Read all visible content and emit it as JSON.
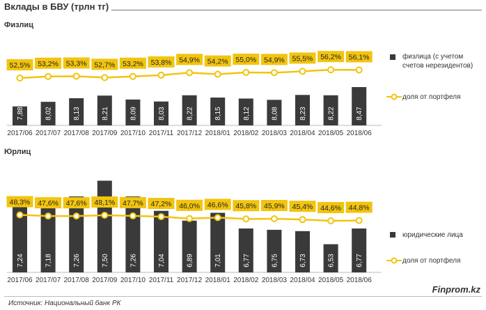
{
  "title": "Вклады в БВУ (трлн тг)",
  "source": "Источник: Национальный банк РК",
  "brand": "Finprom.kz",
  "colors": {
    "bar": "#3a3a3a",
    "line": "#f2c40f",
    "label_bg": "#f2c40f",
    "bar_text": "#ffffff"
  },
  "chart_data": [
    {
      "type": "bar",
      "panel_title": "Физлиц",
      "categories": [
        "2017/06",
        "2017/07",
        "2017/08",
        "2017/09",
        "2017/10",
        "2017/11",
        "2017/12",
        "2018/01",
        "2018/02",
        "2018/03",
        "2018/04",
        "2018/05",
        "2018/06"
      ],
      "series": [
        {
          "name": "физлица (с учетом счетов нерезидентов)",
          "type": "bar",
          "values": [
            7.88,
            8.02,
            8.13,
            8.21,
            8.09,
            8.03,
            8.22,
            8.15,
            8.12,
            8.08,
            8.23,
            8.22,
            8.47
          ],
          "labels": [
            "7,88",
            "8,02",
            "8,13",
            "8,21",
            "8,09",
            "8,03",
            "8,22",
            "8,15",
            "8,12",
            "8,08",
            "8,23",
            "8,22",
            "8,47"
          ]
        },
        {
          "name": "доля от портфеля",
          "type": "line",
          "values": [
            52.5,
            53.2,
            53.3,
            52.7,
            53.2,
            53.8,
            54.9,
            54.2,
            55.0,
            54.9,
            55.5,
            56.2,
            56.1
          ],
          "labels": [
            "52,5%",
            "53,2%",
            "53,3%",
            "52,7%",
            "53,2%",
            "53,8%",
            "54,9%",
            "54,2%",
            "55,0%",
            "54,9%",
            "55,5%",
            "56,2%",
            "56,1%"
          ]
        }
      ],
      "legend_position": "right",
      "grid": false
    },
    {
      "type": "bar",
      "panel_title": "Юрлиц",
      "categories": [
        "2017/06",
        "2017/07",
        "2017/08",
        "2017/09",
        "2017/10",
        "2017/11",
        "2017/12",
        "2018/01",
        "2018/02",
        "2018/03",
        "2018/04",
        "2018/05",
        "2018/06"
      ],
      "series": [
        {
          "name": "юридические лица",
          "type": "bar",
          "values": [
            7.24,
            7.18,
            7.26,
            7.5,
            7.26,
            7.04,
            6.89,
            7.01,
            6.77,
            6.75,
            6.73,
            6.53,
            6.77
          ],
          "labels": [
            "7,24",
            "7,18",
            "7,26",
            "7,50",
            "7,26",
            "7,04",
            "6,89",
            "7,01",
            "6,77",
            "6,75",
            "6,73",
            "6,53",
            "6,77"
          ]
        },
        {
          "name": "доля от портфеля",
          "type": "line",
          "values": [
            48.3,
            47.6,
            47.6,
            48.1,
            47.7,
            47.2,
            46.0,
            46.6,
            45.8,
            45.9,
            45.4,
            44.6,
            44.8
          ],
          "labels": [
            "48,3%",
            "47,6%",
            "47,6%",
            "48,1%",
            "47,7%",
            "47,2%",
            "46,0%",
            "46,6%",
            "45,8%",
            "45,9%",
            "45,4%",
            "44,6%",
            "44,8%"
          ]
        }
      ],
      "legend_position": "right",
      "grid": false
    }
  ]
}
